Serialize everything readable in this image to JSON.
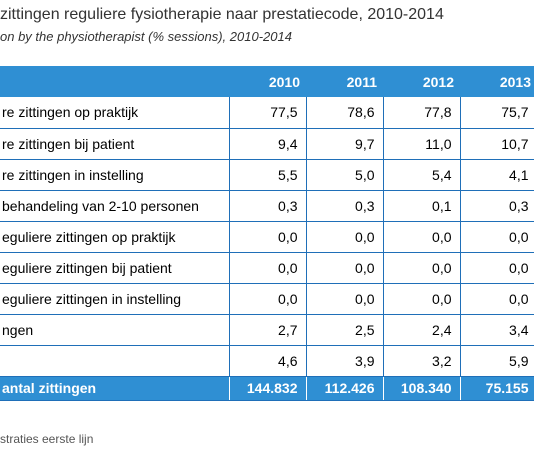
{
  "title": "zittingen reguliere fysiotherapie naar prestatiecode, 2010-2014",
  "subtitle": "on by the physiotherapist (% sessions), 2010-2014",
  "table": {
    "years": [
      "2010",
      "2011",
      "2012",
      "2013"
    ],
    "rows": [
      {
        "label": "re zittingen op praktijk",
        "values": [
          "77,5",
          "78,6",
          "77,8",
          "75,7"
        ]
      },
      {
        "label": "re zittingen bij patient",
        "values": [
          "9,4",
          "9,7",
          "11,0",
          "10,7"
        ]
      },
      {
        "label": "re zittingen in instelling",
        "values": [
          "5,5",
          "5,0",
          "5,4",
          "4,1"
        ]
      },
      {
        "label": "behandeling van 2-10 personen",
        "values": [
          "0,3",
          "0,3",
          "0,1",
          "0,3"
        ]
      },
      {
        "label": "eguliere zittingen op praktijk",
        "values": [
          "0,0",
          "0,0",
          "0,0",
          "0,0"
        ]
      },
      {
        "label": "eguliere zittingen bij patient",
        "values": [
          "0,0",
          "0,0",
          "0,0",
          "0,0"
        ]
      },
      {
        "label": "eguliere zittingen in instelling",
        "values": [
          "0,0",
          "0,0",
          "0,0",
          "0,0"
        ]
      },
      {
        "label": "ngen",
        "values": [
          "2,7",
          "2,5",
          "2,4",
          "3,4"
        ]
      },
      {
        "label": "",
        "values": [
          "4,6",
          "3,9",
          "3,2",
          "5,9"
        ]
      }
    ],
    "total": {
      "label": "antal zittingen",
      "values": [
        "144.832",
        "112.426",
        "108.340",
        "75.155"
      ]
    }
  },
  "source": "straties eerste lijn"
}
